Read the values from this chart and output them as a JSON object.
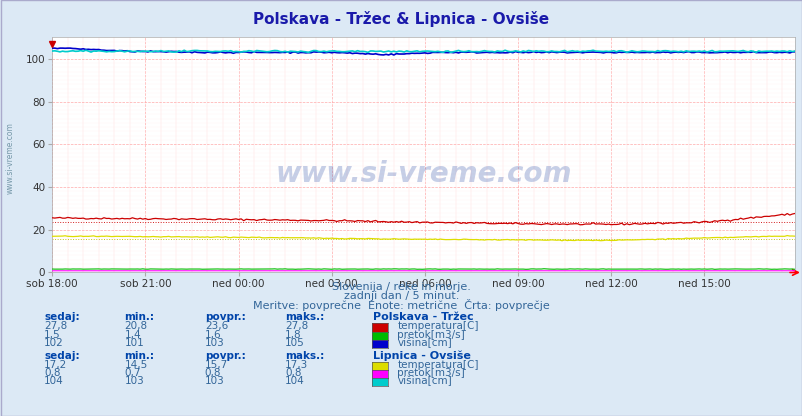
{
  "title": "Polskava - Tržec & Lipnica - Ovsiše",
  "title_color": "#1a1aaa",
  "bg_color": "#dce9f5",
  "plot_bg_color": "#ffffff",
  "xlim": [
    0,
    287
  ],
  "ylim": [
    0,
    110
  ],
  "yticks": [
    0,
    20,
    40,
    60,
    80,
    100
  ],
  "xtick_labels": [
    "sob 18:00",
    "sob 21:00",
    "ned 00:00",
    "ned 03:00",
    "ned 06:00",
    "ned 09:00",
    "ned 12:00",
    "ned 15:00"
  ],
  "xtick_positions": [
    0,
    36,
    72,
    108,
    144,
    180,
    216,
    252
  ],
  "n_points": 288,
  "polskava_temp_avg": 23.6,
  "lipnica_temp_avg": 15.7,
  "color_polskava_temp": "#cc0000",
  "color_polskava_pretok": "#00bb00",
  "color_polskava_visina": "#0000cc",
  "color_lipnica_temp": "#dddd00",
  "color_lipnica_pretok": "#ff00ff",
  "color_lipnica_visina": "#00cccc",
  "watermark": "www.si-vreme.com",
  "subtitle1": "Slovenija / reke in morje.",
  "subtitle2": "zadnji dan / 5 minut.",
  "subtitle3": "Meritve: povprečne  Enote: metrične  Črta: povprečje",
  "sidebar_text": "www.si-vreme.com",
  "text_color": "#336699",
  "header_color": "#0044aa",
  "col_headers": [
    "sedaj:",
    "min.:",
    "povpr.:",
    "maks.:"
  ],
  "polskava_title": "Polskava - Tržec",
  "lipnica_title": "Lipnica - Ovsiše",
  "polskava_rows": [
    [
      "27,8",
      "20,8",
      "23,6",
      "27,8"
    ],
    [
      "1,5",
      "1,4",
      "1,6",
      "1,8"
    ],
    [
      "102",
      "101",
      "103",
      "105"
    ]
  ],
  "lipnica_rows": [
    [
      "17,2",
      "14,5",
      "15,7",
      "17,3"
    ],
    [
      "0,8",
      "0,7",
      "0,8",
      "0,8"
    ],
    [
      "104",
      "103",
      "103",
      "104"
    ]
  ],
  "polskava_labels": [
    "temperatura[C]",
    "pretok[m3/s]",
    "višina[cm]"
  ],
  "lipnica_labels": [
    "temperatura[C]",
    "pretok[m3/s]",
    "višina[cm]"
  ]
}
